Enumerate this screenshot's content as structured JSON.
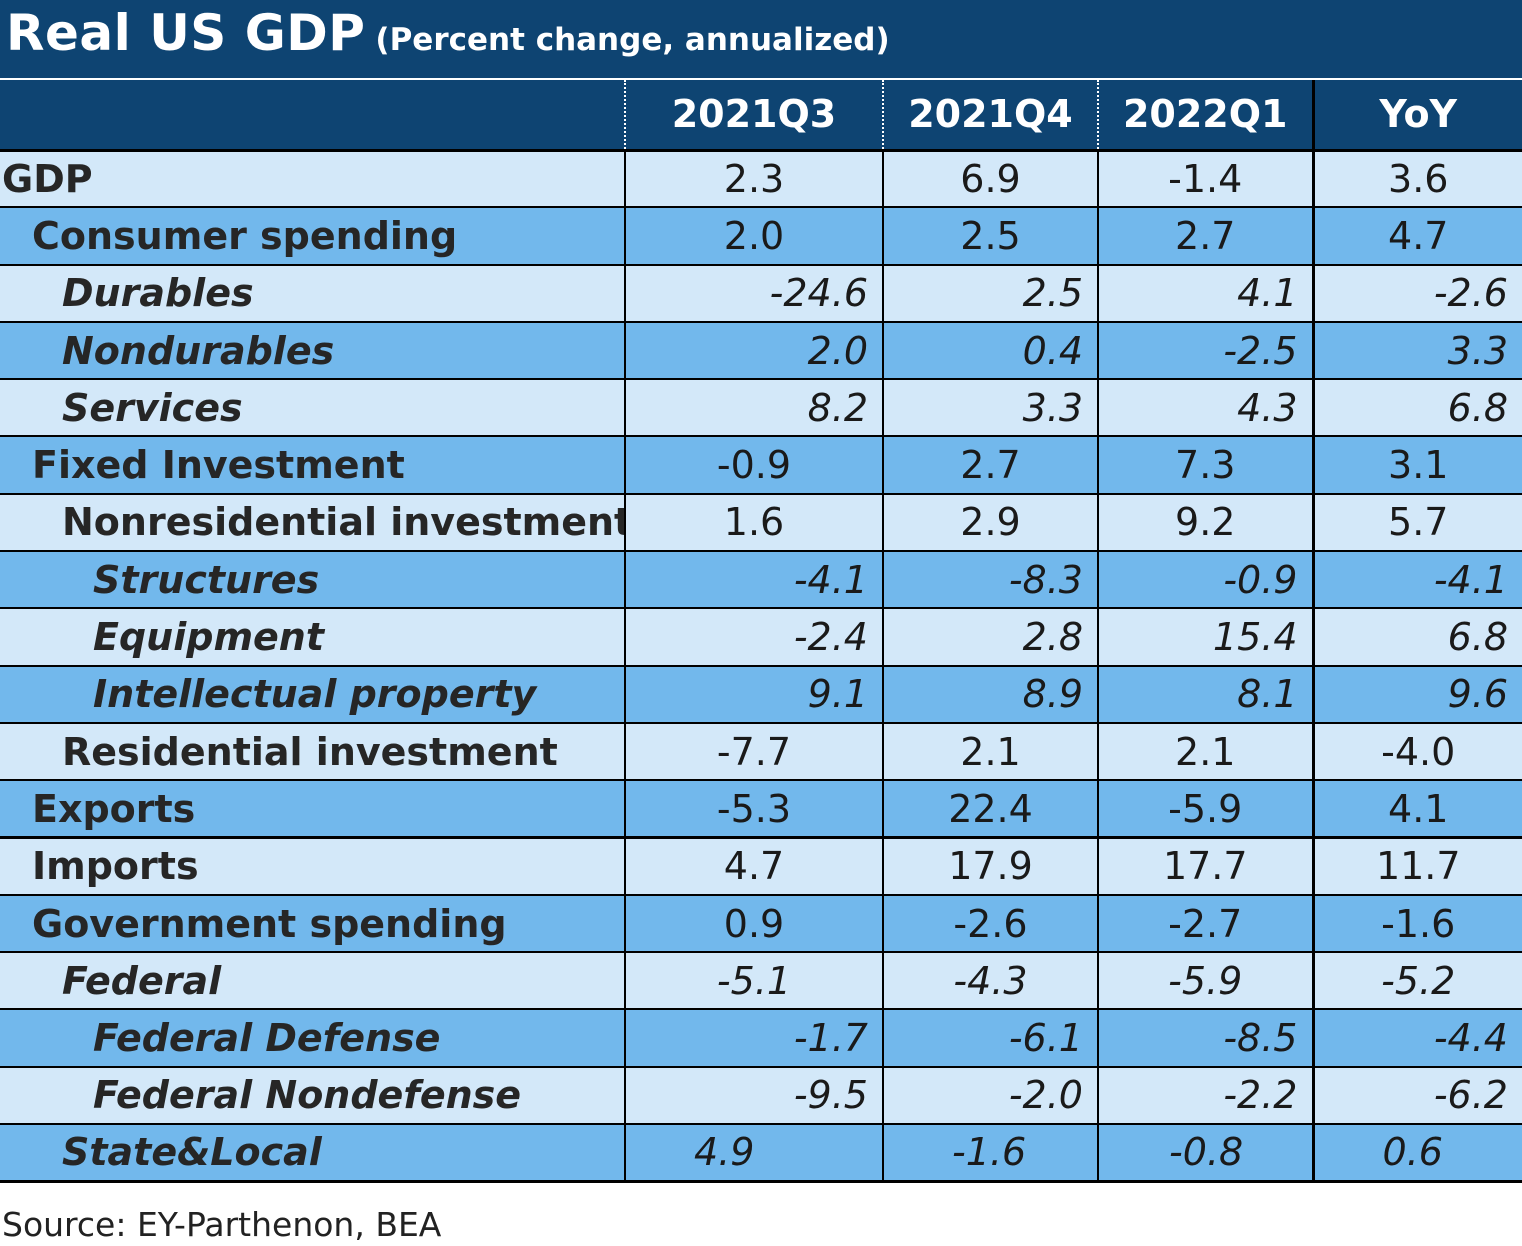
{
  "chart_data": {
    "type": "table",
    "title": "Real US GDP",
    "subtitle": "(Percent change, annualized)",
    "columns": [
      "2021Q3",
      "2021Q4",
      "2022Q1",
      "YoY"
    ],
    "rows": [
      {
        "label": "GDP",
        "values": [
          "2.3",
          "6.9",
          "-1.4",
          "3.6"
        ]
      },
      {
        "label": "Consumer spending",
        "values": [
          "2.0",
          "2.5",
          "2.7",
          "4.7"
        ]
      },
      {
        "label": "Durables",
        "values": [
          "-24.6",
          "2.5",
          "4.1",
          "-2.6"
        ]
      },
      {
        "label": "Nondurables",
        "values": [
          "2.0",
          "0.4",
          "-2.5",
          "3.3"
        ]
      },
      {
        "label": "Services",
        "values": [
          "8.2",
          "3.3",
          "4.3",
          "6.8"
        ]
      },
      {
        "label": "Fixed Investment",
        "values": [
          "-0.9",
          "2.7",
          "7.3",
          "3.1"
        ]
      },
      {
        "label": "Nonresidential investment",
        "values": [
          "1.6",
          "2.9",
          "9.2",
          "5.7"
        ]
      },
      {
        "label": "Structures",
        "values": [
          "-4.1",
          "-8.3",
          "-0.9",
          "-4.1"
        ]
      },
      {
        "label": "Equipment",
        "values": [
          "-2.4",
          "2.8",
          "15.4",
          "6.8"
        ]
      },
      {
        "label": "Intellectual property",
        "values": [
          "9.1",
          "8.9",
          "8.1",
          "9.6"
        ]
      },
      {
        "label": "Residential investment",
        "values": [
          "-7.7",
          "2.1",
          "2.1",
          "-4.0"
        ]
      },
      {
        "label": "Exports",
        "values": [
          "-5.3",
          "22.4",
          "-5.9",
          "4.1"
        ]
      },
      {
        "label": "Imports",
        "values": [
          "4.7",
          "17.9",
          "17.7",
          "11.7"
        ]
      },
      {
        "label": "Government spending",
        "values": [
          "0.9",
          "-2.6",
          "-2.7",
          "-1.6"
        ]
      },
      {
        "label": "Federal",
        "values": [
          "-5.1",
          "-4.3",
          "-5.9",
          "-5.2"
        ]
      },
      {
        "label": "Federal Defense",
        "values": [
          "-1.7",
          "-6.1",
          "-8.5",
          "-4.4"
        ]
      },
      {
        "label": "Federal Nondefense",
        "values": [
          "-9.5",
          "-2.0",
          "-2.2",
          "-6.2"
        ]
      },
      {
        "label": "State&Local",
        "values": [
          "4.9",
          "-1.6",
          "-0.8",
          "0.6"
        ]
      }
    ],
    "source": "Source: EY-Parthenon, BEA",
    "colors": {
      "header": "#0e4472",
      "row_light": "#d3e8f9",
      "row_mid": "#72b8ec"
    }
  }
}
